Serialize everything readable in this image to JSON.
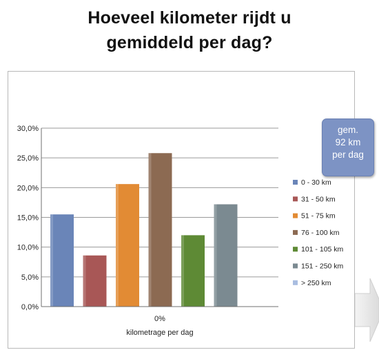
{
  "title": {
    "line1": "Hoeveel kilometer rijdt u",
    "line2": "gemiddeld per dag?"
  },
  "callout": {
    "line1": "gem.",
    "line2": "92 km",
    "line3": "per dag"
  },
  "chart_data": {
    "type": "bar",
    "categories": [
      "0%"
    ],
    "xlabel": "kilometrage per dag",
    "ylabel": "",
    "ylim": [
      0,
      30
    ],
    "yticks": [
      "0,0%",
      "5,0%",
      "10,0%",
      "15,0%",
      "20,0%",
      "25,0%",
      "30,0%"
    ],
    "grid": true,
    "legend_position": "right",
    "series": [
      {
        "name": "0 - 30 km",
        "values": [
          15.5
        ],
        "color": "#6a85b8"
      },
      {
        "name": "31 - 50 km",
        "values": [
          8.6
        ],
        "color": "#a85756"
      },
      {
        "name": "51 - 75 km",
        "values": [
          20.6
        ],
        "color": "#e28b34"
      },
      {
        "name": "76 - 100 km",
        "values": [
          25.8
        ],
        "color": "#8c6a52"
      },
      {
        "name": "101 - 105 km",
        "values": [
          12.0
        ],
        "color": "#5e8a35"
      },
      {
        "name": "151 - 250 km",
        "values": [
          17.2
        ],
        "color": "#7b8a91"
      },
      {
        "name": "> 250 km",
        "values": [
          0
        ],
        "color": "#a9bde0"
      }
    ]
  }
}
